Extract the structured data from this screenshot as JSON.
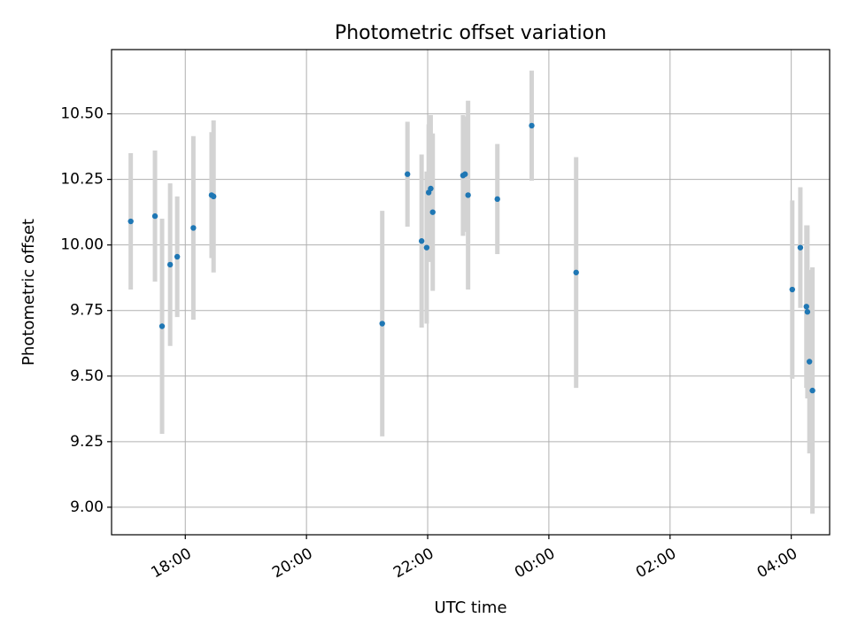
{
  "chart_data": {
    "type": "scatter",
    "title": "Photometric offset variation",
    "xlabel": "UTC time",
    "ylabel": "Photometric offset",
    "x_axis": {
      "kind": "time",
      "range": [
        "16:47",
        "04:38"
      ],
      "ticks": [
        "18:00",
        "20:00",
        "22:00",
        "00:00",
        "02:00",
        "04:00"
      ]
    },
    "y_axis": {
      "range": [
        8.895,
        10.745
      ],
      "ticks": [
        "9.00",
        "9.25",
        "9.50",
        "9.75",
        "10.00",
        "10.25",
        "10.50"
      ]
    },
    "grid": true,
    "legend": false,
    "colors": {
      "point": "#1f77b4",
      "errorbar": "#d3d3d3",
      "grid": "#b0b0b0"
    },
    "points": [
      {
        "t": "17:06",
        "y": 10.09,
        "err": 0.26
      },
      {
        "t": "17:30",
        "y": 10.11,
        "err": 0.25
      },
      {
        "t": "17:37",
        "y": 9.69,
        "err": 0.41
      },
      {
        "t": "17:45",
        "y": 9.925,
        "err": 0.31
      },
      {
        "t": "17:52",
        "y": 9.955,
        "err": 0.23
      },
      {
        "t": "18:08",
        "y": 10.065,
        "err": 0.35
      },
      {
        "t": "18:26",
        "y": 10.19,
        "err": 0.24
      },
      {
        "t": "18:28",
        "y": 10.185,
        "err": 0.29
      },
      {
        "t": "21:15",
        "y": 9.7,
        "err": 0.43
      },
      {
        "t": "21:40",
        "y": 10.27,
        "err": 0.2
      },
      {
        "t": "21:54",
        "y": 10.015,
        "err": 0.33
      },
      {
        "t": "21:59",
        "y": 9.99,
        "err": 0.29
      },
      {
        "t": "22:01",
        "y": 10.2,
        "err": 0.26
      },
      {
        "t": "22:03",
        "y": 10.215,
        "err": 0.28
      },
      {
        "t": "22:05",
        "y": 10.125,
        "err": 0.3
      },
      {
        "t": "22:35",
        "y": 10.265,
        "err": 0.23
      },
      {
        "t": "22:37",
        "y": 10.27,
        "err": 0.22
      },
      {
        "t": "22:40",
        "y": 10.19,
        "err": 0.36
      },
      {
        "t": "23:09",
        "y": 10.175,
        "err": 0.21
      },
      {
        "t": "23:43",
        "y": 10.455,
        "err": 0.21
      },
      {
        "t": "00:27",
        "y": 9.895,
        "err": 0.44
      },
      {
        "t": "04:01",
        "y": 9.83,
        "err": 0.34
      },
      {
        "t": "04:09",
        "y": 9.99,
        "err": 0.23
      },
      {
        "t": "04:15",
        "y": 9.765,
        "err": 0.31
      },
      {
        "t": "04:16",
        "y": 9.745,
        "err": 0.33
      },
      {
        "t": "04:18",
        "y": 9.555,
        "err": 0.35
      },
      {
        "t": "04:21",
        "y": 9.445,
        "err": 0.47
      }
    ]
  }
}
